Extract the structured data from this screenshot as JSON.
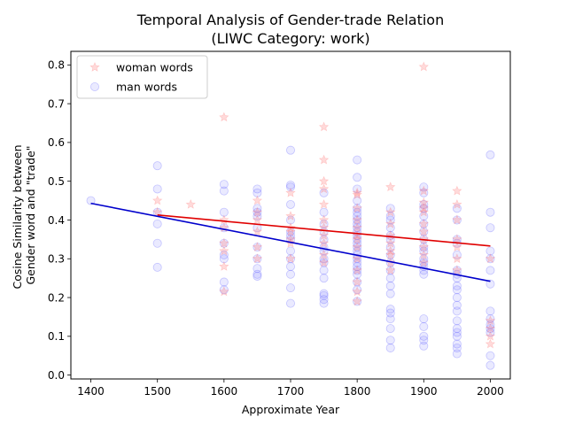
{
  "chart_data": {
    "type": "scatter",
    "title": "Temporal Analysis of Gender-trade Relation",
    "subtitle": "(LIWC Category: work)",
    "xlabel": "Approximate Year",
    "ylabel": "Cosine Similarity between\nGender word and \"trade\"",
    "xlim": [
      1370,
      2030
    ],
    "ylim": [
      -0.01,
      0.835
    ],
    "xticks": [
      1400,
      1500,
      1600,
      1700,
      1800,
      1900,
      2000
    ],
    "yticks": [
      0.0,
      0.1,
      0.2,
      0.3,
      0.4,
      0.5,
      0.6,
      0.7,
      0.8
    ],
    "grid": false,
    "legend_position": "top-left",
    "series": [
      {
        "name": "woman words",
        "marker": "star",
        "color": "#ff6b6b",
        "points": [
          [
            1500,
            0.45
          ],
          [
            1500,
            0.42
          ],
          [
            1550,
            0.44
          ],
          [
            1600,
            0.665
          ],
          [
            1600,
            0.4
          ],
          [
            1600,
            0.38
          ],
          [
            1600,
            0.34
          ],
          [
            1600,
            0.32
          ],
          [
            1600,
            0.28
          ],
          [
            1600,
            0.215
          ],
          [
            1650,
            0.45
          ],
          [
            1650,
            0.42
          ],
          [
            1650,
            0.4
          ],
          [
            1650,
            0.37
          ],
          [
            1650,
            0.33
          ],
          [
            1650,
            0.3
          ],
          [
            1700,
            0.47
          ],
          [
            1700,
            0.41
          ],
          [
            1700,
            0.38
          ],
          [
            1700,
            0.37
          ],
          [
            1700,
            0.35
          ],
          [
            1700,
            0.34
          ],
          [
            1700,
            0.3
          ],
          [
            1750,
            0.64
          ],
          [
            1750,
            0.555
          ],
          [
            1750,
            0.5
          ],
          [
            1750,
            0.48
          ],
          [
            1750,
            0.44
          ],
          [
            1750,
            0.4
          ],
          [
            1750,
            0.38
          ],
          [
            1750,
            0.36
          ],
          [
            1750,
            0.34
          ],
          [
            1750,
            0.31
          ],
          [
            1750,
            0.29
          ],
          [
            1800,
            0.47
          ],
          [
            1800,
            0.465
          ],
          [
            1800,
            0.43
          ],
          [
            1800,
            0.4
          ],
          [
            1800,
            0.38
          ],
          [
            1800,
            0.36
          ],
          [
            1800,
            0.35
          ],
          [
            1800,
            0.33
          ],
          [
            1800,
            0.3
          ],
          [
            1800,
            0.27
          ],
          [
            1800,
            0.24
          ],
          [
            1800,
            0.215
          ],
          [
            1800,
            0.19
          ],
          [
            1850,
            0.485
          ],
          [
            1850,
            0.42
          ],
          [
            1850,
            0.39
          ],
          [
            1850,
            0.36
          ],
          [
            1850,
            0.34
          ],
          [
            1850,
            0.32
          ],
          [
            1850,
            0.31
          ],
          [
            1850,
            0.29
          ],
          [
            1850,
            0.27
          ],
          [
            1900,
            0.795
          ],
          [
            1900,
            0.475
          ],
          [
            1900,
            0.445
          ],
          [
            1900,
            0.43
          ],
          [
            1900,
            0.42
          ],
          [
            1900,
            0.39
          ],
          [
            1900,
            0.37
          ],
          [
            1900,
            0.35
          ],
          [
            1900,
            0.33
          ],
          [
            1900,
            0.31
          ],
          [
            1900,
            0.29
          ],
          [
            1950,
            0.475
          ],
          [
            1950,
            0.44
          ],
          [
            1950,
            0.4
          ],
          [
            1950,
            0.35
          ],
          [
            1950,
            0.33
          ],
          [
            1950,
            0.3
          ],
          [
            1950,
            0.27
          ],
          [
            2000,
            0.3
          ],
          [
            2000,
            0.14
          ],
          [
            2000,
            0.12
          ],
          [
            2000,
            0.1
          ],
          [
            2000,
            0.08
          ]
        ],
        "trend": {
          "x": [
            1500,
            2000
          ],
          "y": [
            0.413,
            0.333
          ],
          "color": "#e00000"
        }
      },
      {
        "name": "man words",
        "marker": "circle",
        "color": "#6b6bff",
        "points": [
          [
            1400,
            0.45
          ],
          [
            1500,
            0.54
          ],
          [
            1500,
            0.48
          ],
          [
            1500,
            0.42
          ],
          [
            1500,
            0.39
          ],
          [
            1500,
            0.34
          ],
          [
            1500,
            0.278
          ],
          [
            1600,
            0.492
          ],
          [
            1600,
            0.475
          ],
          [
            1600,
            0.42
          ],
          [
            1600,
            0.38
          ],
          [
            1600,
            0.34
          ],
          [
            1600,
            0.31
          ],
          [
            1600,
            0.3
          ],
          [
            1600,
            0.24
          ],
          [
            1600,
            0.22
          ],
          [
            1650,
            0.48
          ],
          [
            1650,
            0.47
          ],
          [
            1650,
            0.43
          ],
          [
            1650,
            0.42
          ],
          [
            1650,
            0.41
          ],
          [
            1650,
            0.38
          ],
          [
            1650,
            0.33
          ],
          [
            1650,
            0.3
          ],
          [
            1650,
            0.275
          ],
          [
            1650,
            0.26
          ],
          [
            1650,
            0.255
          ],
          [
            1700,
            0.58
          ],
          [
            1700,
            0.49
          ],
          [
            1700,
            0.485
          ],
          [
            1700,
            0.44
          ],
          [
            1700,
            0.4
          ],
          [
            1700,
            0.37
          ],
          [
            1700,
            0.36
          ],
          [
            1700,
            0.35
          ],
          [
            1700,
            0.32
          ],
          [
            1700,
            0.3
          ],
          [
            1700,
            0.28
          ],
          [
            1700,
            0.26
          ],
          [
            1700,
            0.225
          ],
          [
            1700,
            0.185
          ],
          [
            1750,
            0.47
          ],
          [
            1750,
            0.42
          ],
          [
            1750,
            0.39
          ],
          [
            1750,
            0.37
          ],
          [
            1750,
            0.35
          ],
          [
            1750,
            0.33
          ],
          [
            1750,
            0.32
          ],
          [
            1750,
            0.3
          ],
          [
            1750,
            0.29
          ],
          [
            1750,
            0.27
          ],
          [
            1750,
            0.25
          ],
          [
            1750,
            0.21
          ],
          [
            1750,
            0.205
          ],
          [
            1750,
            0.195
          ],
          [
            1750,
            0.185
          ],
          [
            1800,
            0.555
          ],
          [
            1800,
            0.51
          ],
          [
            1800,
            0.48
          ],
          [
            1800,
            0.45
          ],
          [
            1800,
            0.43
          ],
          [
            1800,
            0.42
          ],
          [
            1800,
            0.41
          ],
          [
            1800,
            0.4
          ],
          [
            1800,
            0.39
          ],
          [
            1800,
            0.38
          ],
          [
            1800,
            0.37
          ],
          [
            1800,
            0.36
          ],
          [
            1800,
            0.35
          ],
          [
            1800,
            0.34
          ],
          [
            1800,
            0.33
          ],
          [
            1800,
            0.32
          ],
          [
            1800,
            0.31
          ],
          [
            1800,
            0.3
          ],
          [
            1800,
            0.29
          ],
          [
            1800,
            0.28
          ],
          [
            1800,
            0.27
          ],
          [
            1800,
            0.26
          ],
          [
            1800,
            0.24
          ],
          [
            1800,
            0.22
          ],
          [
            1800,
            0.19
          ],
          [
            1850,
            0.43
          ],
          [
            1850,
            0.41
          ],
          [
            1850,
            0.4
          ],
          [
            1850,
            0.38
          ],
          [
            1850,
            0.36
          ],
          [
            1850,
            0.35
          ],
          [
            1850,
            0.33
          ],
          [
            1850,
            0.31
          ],
          [
            1850,
            0.29
          ],
          [
            1850,
            0.27
          ],
          [
            1850,
            0.25
          ],
          [
            1850,
            0.23
          ],
          [
            1850,
            0.21
          ],
          [
            1850,
            0.17
          ],
          [
            1850,
            0.16
          ],
          [
            1850,
            0.145
          ],
          [
            1850,
            0.12
          ],
          [
            1850,
            0.09
          ],
          [
            1850,
            0.07
          ],
          [
            1900,
            0.485
          ],
          [
            1900,
            0.47
          ],
          [
            1900,
            0.44
          ],
          [
            1900,
            0.43
          ],
          [
            1900,
            0.41
          ],
          [
            1900,
            0.39
          ],
          [
            1900,
            0.37
          ],
          [
            1900,
            0.35
          ],
          [
            1900,
            0.33
          ],
          [
            1900,
            0.32
          ],
          [
            1900,
            0.3
          ],
          [
            1900,
            0.29
          ],
          [
            1900,
            0.28
          ],
          [
            1900,
            0.27
          ],
          [
            1900,
            0.26
          ],
          [
            1900,
            0.145
          ],
          [
            1900,
            0.125
          ],
          [
            1900,
            0.1
          ],
          [
            1900,
            0.09
          ],
          [
            1900,
            0.075
          ],
          [
            1950,
            0.43
          ],
          [
            1950,
            0.4
          ],
          [
            1950,
            0.35
          ],
          [
            1950,
            0.34
          ],
          [
            1950,
            0.31
          ],
          [
            1950,
            0.27
          ],
          [
            1950,
            0.26
          ],
          [
            1950,
            0.25
          ],
          [
            1950,
            0.23
          ],
          [
            1950,
            0.22
          ],
          [
            1950,
            0.2
          ],
          [
            1950,
            0.18
          ],
          [
            1950,
            0.165
          ],
          [
            1950,
            0.14
          ],
          [
            1950,
            0.12
          ],
          [
            1950,
            0.11
          ],
          [
            1950,
            0.1
          ],
          [
            1950,
            0.08
          ],
          [
            1950,
            0.07
          ],
          [
            1950,
            0.055
          ],
          [
            2000,
            0.568
          ],
          [
            2000,
            0.42
          ],
          [
            2000,
            0.38
          ],
          [
            2000,
            0.32
          ],
          [
            2000,
            0.3
          ],
          [
            2000,
            0.27
          ],
          [
            2000,
            0.235
          ],
          [
            2000,
            0.165
          ],
          [
            2000,
            0.145
          ],
          [
            2000,
            0.13
          ],
          [
            2000,
            0.12
          ],
          [
            2000,
            0.11
          ],
          [
            2000,
            0.05
          ],
          [
            2000,
            0.025
          ]
        ],
        "trend": {
          "x": [
            1400,
            2000
          ],
          "y": [
            0.443,
            0.242
          ],
          "color": "#0000cc"
        }
      }
    ]
  }
}
